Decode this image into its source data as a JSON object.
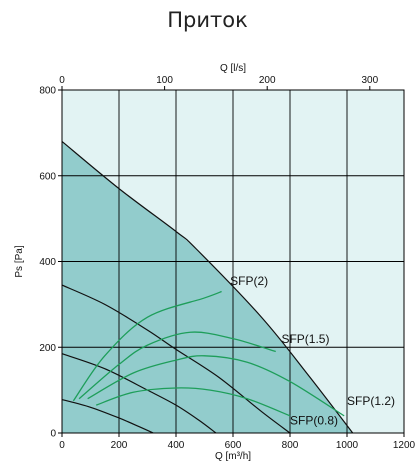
{
  "title": "Приток",
  "chart_data": {
    "type": "line",
    "title": "Приток",
    "xlabel": "Q [m³/h]",
    "x2label": "Q [l/s]",
    "ylabel": "Ps [Pa]",
    "xlim": [
      0,
      1200
    ],
    "ylim": [
      0,
      800
    ],
    "x2lim": [
      0,
      333.33
    ],
    "x_ticks": [
      "0",
      "200",
      "400",
      "600",
      "800",
      "1000",
      "1200"
    ],
    "y_ticks": [
      "0",
      "200",
      "400",
      "600",
      "800"
    ],
    "x2_ticks": [
      "0",
      "100",
      "200",
      "300"
    ],
    "grid": true,
    "colors": {
      "area": "#92cccc",
      "area_light": "#e2f3f3",
      "fan_curve": "#111111",
      "sfp_curve": "#1e9e5a"
    },
    "operating_area": [
      [
        0,
        680
      ],
      [
        200,
        570
      ],
      [
        400,
        470
      ],
      [
        470,
        430
      ],
      [
        700,
        270
      ],
      [
        870,
        130
      ],
      [
        1020,
        0
      ],
      [
        0,
        0
      ]
    ],
    "series": [
      {
        "kind": "fan",
        "x": [
          0,
          200,
          400,
          470,
          700,
          870,
          1020
        ],
        "y": [
          680,
          570,
          470,
          430,
          270,
          130,
          0
        ]
      },
      {
        "kind": "fan",
        "x": [
          0,
          150,
          300,
          400,
          550,
          700,
          800
        ],
        "y": [
          345,
          300,
          240,
          195,
          130,
          50,
          0
        ]
      },
      {
        "kind": "fan",
        "x": [
          0,
          150,
          300,
          400,
          480,
          540
        ],
        "y": [
          185,
          150,
          100,
          65,
          30,
          0
        ]
      },
      {
        "kind": "fan",
        "x": [
          0,
          100,
          200,
          270,
          320
        ],
        "y": [
          78,
          60,
          35,
          15,
          0
        ]
      },
      {
        "kind": "sfp",
        "name": "SFP(2)",
        "x": [
          40,
          150,
          300,
          500,
          560
        ],
        "y": [
          75,
          180,
          270,
          315,
          330
        ]
      },
      {
        "kind": "sfp",
        "name": "SFP(1.5)",
        "x": [
          60,
          200,
          300,
          450,
          600,
          750
        ],
        "y": [
          80,
          160,
          205,
          235,
          220,
          190
        ]
      },
      {
        "kind": "sfp",
        "name": "SFP(1.2)",
        "x": [
          90,
          250,
          400,
          500,
          650,
          800,
          990
        ],
        "y": [
          80,
          140,
          170,
          180,
          165,
          120,
          40
        ]
      },
      {
        "kind": "sfp",
        "name": "SFP(0.8)",
        "x": [
          120,
          250,
          400,
          520,
          650,
          800
        ],
        "y": [
          65,
          95,
          105,
          100,
          80,
          40
        ]
      }
    ],
    "labels": [
      {
        "text": "SFP(2)",
        "x": 590,
        "y": 345
      },
      {
        "text": "SFP(1.5)",
        "x": 770,
        "y": 210
      },
      {
        "text": "SFP(1.2)",
        "x": 1000,
        "y": 65
      },
      {
        "text": "SFP(0.8)",
        "x": 800,
        "y": 20
      }
    ]
  }
}
